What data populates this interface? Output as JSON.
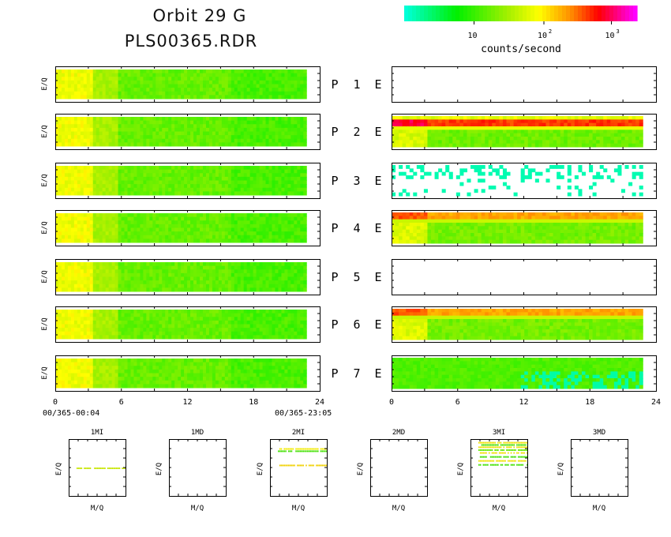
{
  "header": {
    "title_line1": "Orbit 29 G",
    "title_line2": "PLS00365.RDR"
  },
  "colorbar": {
    "unit_label": "counts/second",
    "tick_labels": [
      "10",
      "10",
      "10"
    ],
    "tick_exponents": [
      "",
      "2",
      "3"
    ],
    "colors": [
      "#00ffd8",
      "#00f000",
      "#ffff00",
      "#ff8c00",
      "#ff0000",
      "#ff00ff"
    ]
  },
  "chart_data": {
    "type": "heatmap",
    "colorbar_label": "counts/second",
    "colorbar_scale": "log",
    "colorbar_ticks": [
      10,
      100,
      1000
    ],
    "rows": [
      {
        "panel_label": "P",
        "number": "1",
        "right_label": "E",
        "ylabel": "E/Q",
        "left_level": "green",
        "right_level": "none"
      },
      {
        "panel_label": "P",
        "number": "2",
        "right_label": "E",
        "ylabel": "E/Q",
        "left_level": "green",
        "right_level": "orange-red band over green"
      },
      {
        "panel_label": "P",
        "number": "3",
        "right_label": "E",
        "ylabel": "E/Q",
        "left_level": "green",
        "right_level": "sparse cyan"
      },
      {
        "panel_label": "P",
        "number": "4",
        "right_label": "E",
        "ylabel": "E/Q",
        "left_level": "green",
        "right_level": "orange band over green"
      },
      {
        "panel_label": "P",
        "number": "5",
        "right_label": "E",
        "ylabel": "E/Q",
        "left_level": "green",
        "right_level": "none"
      },
      {
        "panel_label": "P",
        "number": "6",
        "right_label": "E",
        "ylabel": "E/Q",
        "left_level": "green",
        "right_level": "orange band over green"
      },
      {
        "panel_label": "P",
        "number": "7",
        "right_label": "E",
        "ylabel": "E/Q",
        "left_level": "green",
        "right_level": "green with cyan"
      }
    ],
    "x_ticks": [
      "0",
      "6",
      "12",
      "18",
      "24"
    ],
    "xlim": [
      0,
      24
    ],
    "data_end_hour": 22.8,
    "time_start_label": "00/365-00:04",
    "time_end_label": "00/365-23:05",
    "mq_panels": [
      {
        "title": "1MI",
        "xlabel": "M/Q",
        "ylabel": "E/Q",
        "lines": [
          {
            "level": 0.5,
            "color": "#c8e600"
          }
        ]
      },
      {
        "title": "1MD",
        "xlabel": "M/Q",
        "ylabel": "E/Q",
        "lines": []
      },
      {
        "title": "2MI",
        "xlabel": "M/Q",
        "ylabel": "E/Q",
        "lines": [
          {
            "level": 0.16,
            "color": "#f2ec00"
          },
          {
            "level": 0.2,
            "color": "#40e000"
          },
          {
            "level": 0.45,
            "color": "#f0d000"
          }
        ]
      },
      {
        "title": "2MD",
        "xlabel": "M/Q",
        "ylabel": "E/Q",
        "lines": []
      },
      {
        "title": "3MI",
        "xlabel": "M/Q",
        "ylabel": "E/Q",
        "lines": [
          {
            "level": 0.05,
            "color": "#f0e000"
          },
          {
            "level": 0.09,
            "color": "#40e000"
          },
          {
            "level": 0.13,
            "color": "#f0e000"
          },
          {
            "level": 0.18,
            "color": "#60e800"
          },
          {
            "level": 0.23,
            "color": "#f0e000"
          },
          {
            "level": 0.3,
            "color": "#40e000"
          },
          {
            "level": 0.37,
            "color": "#f0e000"
          },
          {
            "level": 0.44,
            "color": "#40e000"
          }
        ]
      },
      {
        "title": "3MD",
        "xlabel": "M/Q",
        "ylabel": "E/Q",
        "lines": []
      }
    ]
  }
}
